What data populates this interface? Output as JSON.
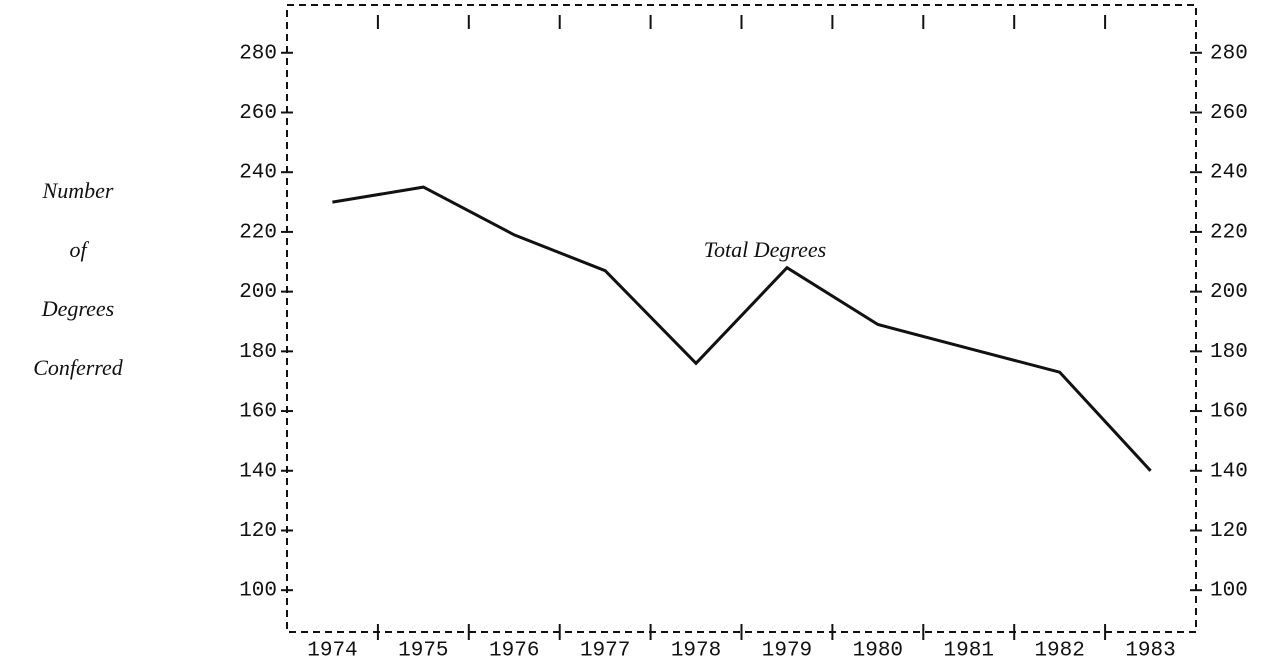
{
  "chart_data": {
    "type": "line",
    "ylabel": [
      "Number",
      "of",
      "Degrees",
      "Conferred"
    ],
    "annotation": "Total Degrees",
    "categories": [
      "1974",
      "1975",
      "1976",
      "1977",
      "1978",
      "1979",
      "1980",
      "1981",
      "1982",
      "1983"
    ],
    "series": [
      {
        "name": "Total Degrees",
        "color": "#111111",
        "values": [
          230,
          235,
          219,
          207,
          176,
          208,
          189,
          181,
          173,
          140
        ]
      }
    ],
    "ylim": [
      86,
      296
    ],
    "yticks": [
      100,
      120,
      140,
      160,
      180,
      200,
      220,
      240,
      260,
      280
    ],
    "grid": false
  }
}
